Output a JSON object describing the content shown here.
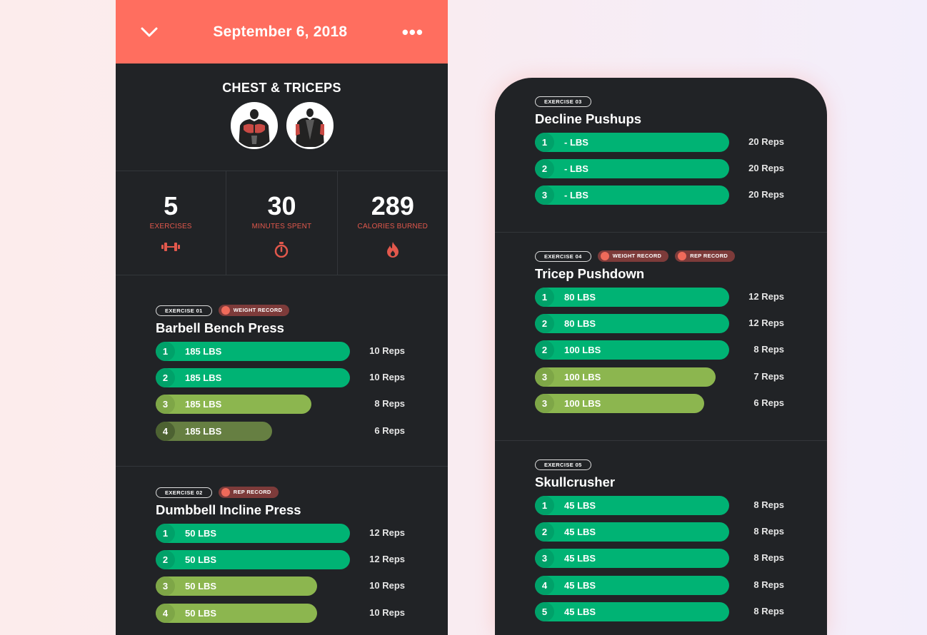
{
  "left": {
    "header": {
      "date": "September 6, 2018",
      "more": "•••"
    },
    "workout": {
      "title": "CHEST & TRICEPS"
    },
    "stats": [
      {
        "value": "5",
        "label": "EXERCISES",
        "icon": "dumbbell-icon"
      },
      {
        "value": "30",
        "label": "MINUTES SPENT",
        "icon": "stopwatch-icon"
      },
      {
        "value": "289",
        "label": "CALORIES BURNED",
        "icon": "flame-icon"
      }
    ],
    "exercises": [
      {
        "tag": "EXERCISE 01",
        "records": [
          "WEIGHT RECORD"
        ],
        "name": "Barbell Bench Press",
        "sets": [
          {
            "num": "1",
            "weight": "185 LBS",
            "reps": "10 Reps",
            "fill": 1.0,
            "color": "#00b374"
          },
          {
            "num": "2",
            "weight": "185 LBS",
            "reps": "10 Reps",
            "fill": 1.0,
            "color": "#00b374"
          },
          {
            "num": "3",
            "weight": "185 LBS",
            "reps": "8 Reps",
            "fill": 0.8,
            "color": "#8cb64f"
          },
          {
            "num": "4",
            "weight": "185 LBS",
            "reps": "6 Reps",
            "fill": 0.6,
            "color": "#667f42"
          }
        ]
      },
      {
        "tag": "EXERCISE 02",
        "records": [
          "REP RECORD"
        ],
        "name": "Dumbbell Incline Press",
        "sets": [
          {
            "num": "1",
            "weight": "50 LBS",
            "reps": "12 Reps",
            "fill": 1.0,
            "color": "#00b374"
          },
          {
            "num": "2",
            "weight": "50 LBS",
            "reps": "12 Reps",
            "fill": 1.0,
            "color": "#00b374"
          },
          {
            "num": "3",
            "weight": "50 LBS",
            "reps": "10 Reps",
            "fill": 0.83,
            "color": "#8cb64f"
          },
          {
            "num": "4",
            "weight": "50 LBS",
            "reps": "10 Reps",
            "fill": 0.83,
            "color": "#8cb64f"
          }
        ]
      }
    ]
  },
  "right": {
    "exercises": [
      {
        "tag": "EXERCISE 03",
        "records": [],
        "name": "Decline Pushups",
        "sets": [
          {
            "num": "1",
            "weight": "- LBS",
            "reps": "20 Reps",
            "fill": 1.0,
            "color": "#00b374"
          },
          {
            "num": "2",
            "weight": "- LBS",
            "reps": "20 Reps",
            "fill": 1.0,
            "color": "#00b374"
          },
          {
            "num": "3",
            "weight": "- LBS",
            "reps": "20 Reps",
            "fill": 1.0,
            "color": "#00b374"
          }
        ]
      },
      {
        "tag": "EXERCISE 04",
        "records": [
          "WEIGHT RECORD",
          "REP RECORD"
        ],
        "name": "Tricep Pushdown",
        "sets": [
          {
            "num": "1",
            "weight": "80 LBS",
            "reps": "12 Reps",
            "fill": 1.0,
            "color": "#00b374"
          },
          {
            "num": "2",
            "weight": "80 LBS",
            "reps": "12 Reps",
            "fill": 1.0,
            "color": "#00b374"
          },
          {
            "num": "2",
            "weight": "100 LBS",
            "reps": "8 Reps",
            "fill": 1.0,
            "color": "#00b374"
          },
          {
            "num": "3",
            "weight": "100 LBS",
            "reps": "7 Reps",
            "fill": 0.93,
            "color": "#8cb64f"
          },
          {
            "num": "3",
            "weight": "100 LBS",
            "reps": "6 Reps",
            "fill": 0.87,
            "color": "#8cb64f"
          }
        ]
      },
      {
        "tag": "EXERCISE 05",
        "records": [],
        "name": "Skullcrusher",
        "sets": [
          {
            "num": "1",
            "weight": "45 LBS",
            "reps": "8 Reps",
            "fill": 1.0,
            "color": "#00b374"
          },
          {
            "num": "2",
            "weight": "45 LBS",
            "reps": "8 Reps",
            "fill": 1.0,
            "color": "#00b374"
          },
          {
            "num": "3",
            "weight": "45 LBS",
            "reps": "8 Reps",
            "fill": 1.0,
            "color": "#00b374"
          },
          {
            "num": "4",
            "weight": "45 LBS",
            "reps": "8 Reps",
            "fill": 1.0,
            "color": "#00b374"
          },
          {
            "num": "5",
            "weight": "45 LBS",
            "reps": "8 Reps",
            "fill": 1.0,
            "color": "#00b374"
          }
        ]
      }
    ]
  }
}
